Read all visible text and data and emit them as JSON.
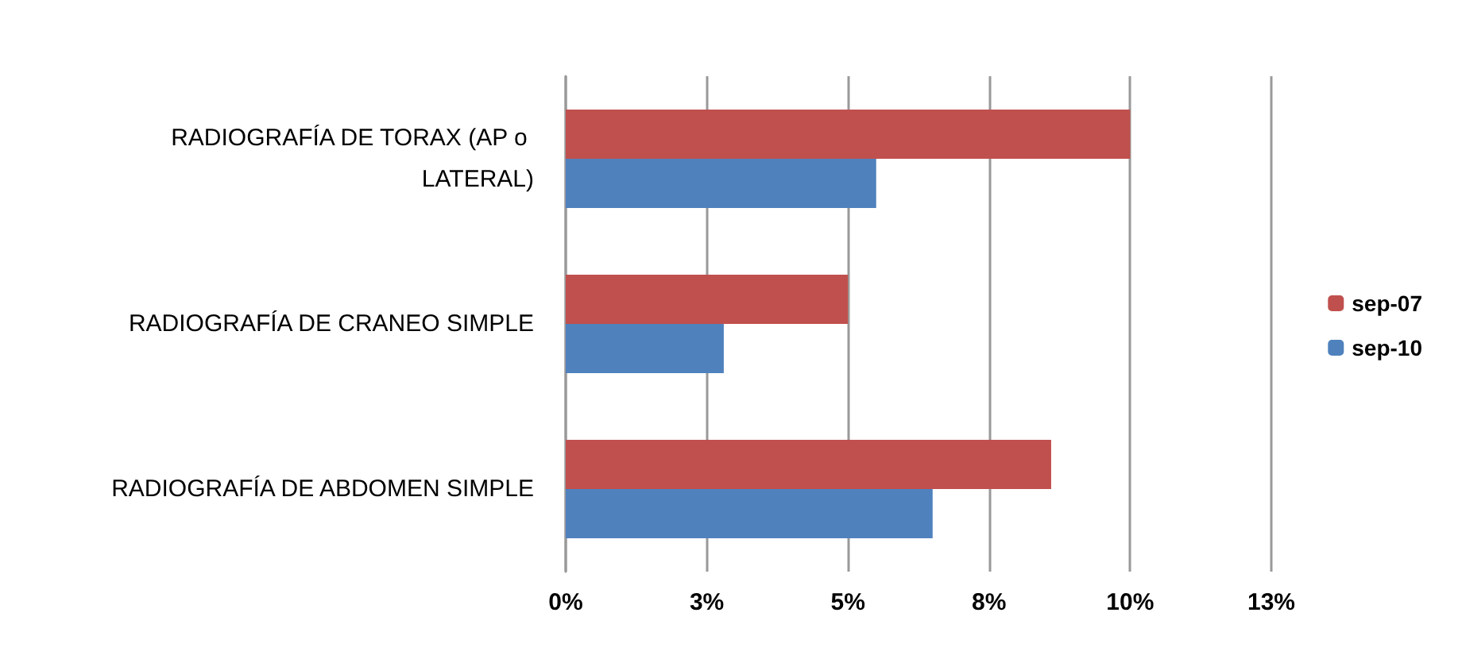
{
  "chart_data": {
    "type": "bar",
    "orientation": "horizontal",
    "categories": [
      "RADIOGRAFÍA DE TORAX (AP o LATERAL)",
      "RADIOGRAFÍA DE CRANEO SIMPLE",
      "RADIOGRAFÍA DE ABDOMEN SIMPLE"
    ],
    "series": [
      {
        "name": "sep-07",
        "color": "#c0504d",
        "values": [
          10,
          5.0,
          8.6
        ]
      },
      {
        "name": "sep-10",
        "color": "#4f81bd",
        "values": [
          5.5,
          2.8,
          6.5
        ]
      }
    ],
    "xlim": [
      0,
      12.5
    ],
    "xticks": [
      {
        "value": 0,
        "label": "0%"
      },
      {
        "value": 2.5,
        "label": "3%"
      },
      {
        "value": 5,
        "label": "5%"
      },
      {
        "value": 7.5,
        "label": "8%"
      },
      {
        "value": 10,
        "label": "10%"
      },
      {
        "value": 12.5,
        "label": "13%"
      }
    ],
    "grid": "x",
    "legend": "right"
  }
}
